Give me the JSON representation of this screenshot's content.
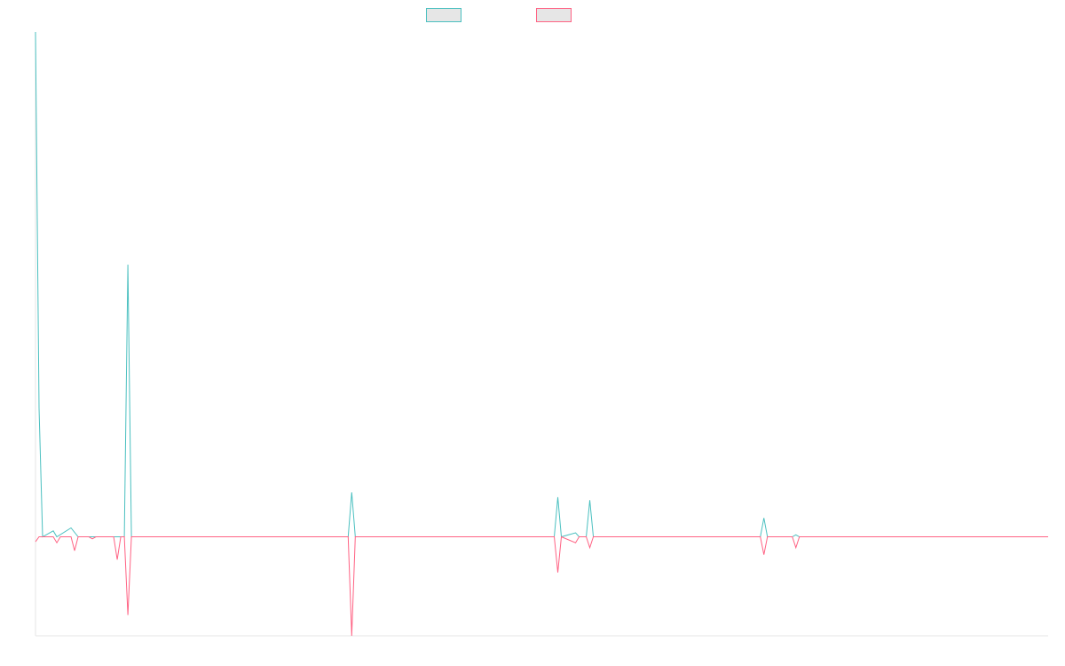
{
  "chart_data": {
    "type": "line",
    "title": "",
    "xlabel": "",
    "ylabel": "",
    "x_count": 286,
    "xlim": [
      0,
      285
    ],
    "ylim": [
      -10,
      51
    ],
    "grid": false,
    "legend": "top-center",
    "series": [
      {
        "color": "#4bc0c0",
        "points": [
          [
            0,
            51
          ],
          [
            1,
            13
          ],
          [
            2,
            0
          ],
          [
            5,
            0.6
          ],
          [
            6,
            0
          ],
          [
            10,
            0.9
          ],
          [
            12,
            0
          ],
          [
            19,
            0
          ],
          [
            25,
            0
          ],
          [
            26,
            27.5
          ],
          [
            27,
            0
          ],
          [
            34,
            0
          ],
          [
            88,
            0
          ],
          [
            89,
            4.5
          ],
          [
            90,
            0
          ],
          [
            146,
            0
          ],
          [
            147,
            4
          ],
          [
            148,
            0
          ],
          [
            152,
            0.4
          ],
          [
            153,
            0
          ],
          [
            155,
            0
          ],
          [
            156,
            3.7
          ],
          [
            157,
            0
          ],
          [
            204,
            0
          ],
          [
            205,
            1.9
          ],
          [
            206,
            0
          ],
          [
            213,
            0
          ],
          [
            214,
            0.2
          ],
          [
            215,
            0
          ],
          [
            285,
            0
          ]
        ]
      },
      {
        "color": "#ff6384",
        "points": [
          [
            0,
            -0.5
          ],
          [
            1,
            0
          ],
          [
            5,
            0
          ],
          [
            6,
            -0.6
          ],
          [
            7,
            0
          ],
          [
            10,
            0
          ],
          [
            11,
            -1.4
          ],
          [
            12,
            0
          ],
          [
            15,
            0
          ],
          [
            16,
            -0.2
          ],
          [
            17,
            0
          ],
          [
            22,
            0
          ],
          [
            23,
            -2.3
          ],
          [
            24,
            0
          ],
          [
            25,
            0
          ],
          [
            26,
            -7.9
          ],
          [
            27,
            0
          ],
          [
            88,
            0
          ],
          [
            89,
            -10
          ],
          [
            90,
            0
          ],
          [
            146,
            0
          ],
          [
            147,
            -3.6
          ],
          [
            148,
            0
          ],
          [
            152,
            -0.6
          ],
          [
            153,
            0
          ],
          [
            155,
            0
          ],
          [
            156,
            -1.1
          ],
          [
            157,
            0
          ],
          [
            204,
            0
          ],
          [
            205,
            -1.8
          ],
          [
            206,
            0
          ],
          [
            213,
            0
          ],
          [
            214,
            -1.1
          ],
          [
            215,
            0
          ],
          [
            285,
            0
          ]
        ]
      }
    ]
  }
}
